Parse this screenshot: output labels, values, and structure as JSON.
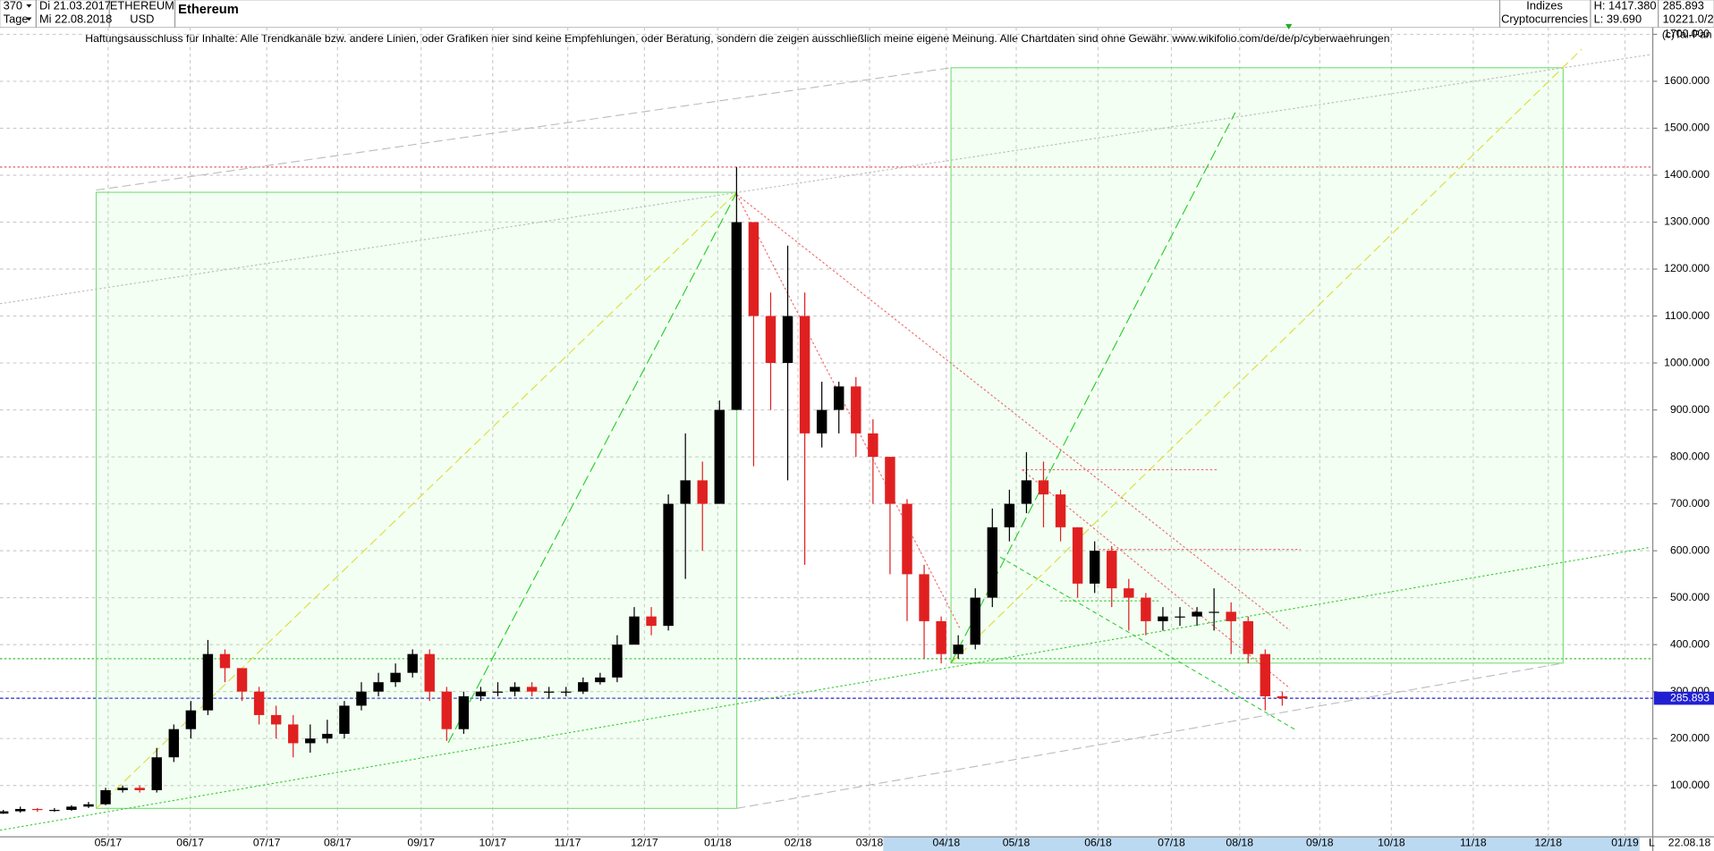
{
  "header": {
    "count": "370",
    "period": "Tage",
    "from": "Di 21.03.2017",
    "to": "Mi 22.08.2018",
    "symbol": "ETHEREUM",
    "currency": "USD",
    "group": "Indizes",
    "subgroup": "Cryptocurrencies",
    "high": "H: 1417.380",
    "low": "L: 39.690",
    "last": "285.893",
    "volume": "10221.0/2",
    "bottom_flag": "L",
    "bottom_date": "22.08.18"
  },
  "chart_data": {
    "type": "candlestick",
    "title": "Ethereum",
    "subtitle": "Haftungsausschluss für Inhalte: Alle Trendkanäle bzw. andere Linien, oder Grafiken hier sind keine Empfehlungen, oder Beratung, sondern die zeigen ausschließlich meine eigene Meinung. Alle Chartdaten sind ohne Gewähr.  www.wikifolio.com/de/de/p/cyberwaehrungen",
    "copyright": "(c)Tai-Pan",
    "up_color": "#000000",
    "down_color": "#e02020",
    "open": [
      40,
      45,
      50,
      48,
      48,
      55,
      60,
      90,
      95,
      90,
      160,
      220,
      260,
      380,
      350,
      300,
      250,
      230,
      190,
      200,
      210,
      270,
      300,
      320,
      340,
      380,
      300,
      220,
      290,
      300,
      300,
      310,
      300,
      300,
      300,
      320,
      330,
      400,
      460,
      440,
      700,
      750,
      700,
      900,
      1300,
      1100,
      1000,
      1100,
      850,
      900,
      950,
      850,
      800,
      700,
      550,
      450,
      380,
      400,
      500,
      650,
      700,
      750,
      720,
      650,
      530,
      600,
      520,
      500,
      450,
      460,
      460,
      470,
      470,
      450,
      380,
      290
    ],
    "high": [
      48,
      55,
      52,
      52,
      58,
      65,
      95,
      100,
      100,
      180,
      230,
      280,
      410,
      390,
      340,
      310,
      270,
      250,
      230,
      240,
      280,
      320,
      340,
      360,
      390,
      390,
      310,
      300,
      310,
      320,
      320,
      320,
      310,
      310,
      330,
      340,
      420,
      480,
      480,
      720,
      850,
      790,
      920,
      1417.38,
      1300,
      1150,
      1250,
      1150,
      960,
      960,
      970,
      880,
      800,
      710,
      570,
      460,
      420,
      520,
      690,
      730,
      810,
      790,
      730,
      650,
      620,
      610,
      540,
      510,
      480,
      480,
      480,
      520,
      490,
      460,
      390,
      300
    ],
    "low": [
      39.69,
      42,
      44,
      44,
      46,
      52,
      58,
      85,
      85,
      85,
      150,
      200,
      250,
      320,
      280,
      230,
      200,
      160,
      170,
      190,
      200,
      260,
      290,
      310,
      330,
      280,
      195,
      210,
      280,
      290,
      290,
      290,
      285,
      290,
      295,
      315,
      320,
      400,
      420,
      430,
      540,
      600,
      700,
      900,
      780,
      900,
      750,
      570,
      820,
      850,
      800,
      700,
      550,
      450,
      370,
      360,
      370,
      390,
      480,
      620,
      680,
      650,
      620,
      500,
      510,
      480,
      430,
      420,
      430,
      440,
      440,
      430,
      380,
      360,
      260,
      270
    ],
    "close": [
      45,
      50,
      48,
      48,
      55,
      60,
      90,
      95,
      90,
      160,
      220,
      260,
      380,
      350,
      300,
      250,
      230,
      190,
      200,
      210,
      270,
      300,
      320,
      340,
      380,
      300,
      220,
      290,
      300,
      300,
      310,
      300,
      300,
      300,
      320,
      330,
      400,
      460,
      440,
      700,
      750,
      700,
      900,
      1300,
      1100,
      1000,
      1100,
      850,
      900,
      950,
      850,
      800,
      700,
      550,
      450,
      380,
      400,
      500,
      650,
      700,
      750,
      720,
      650,
      530,
      600,
      520,
      500,
      450,
      460,
      460,
      470,
      470,
      450,
      380,
      290,
      285.893
    ],
    "xlim": [
      0,
      96.6
    ],
    "xticks": [
      {
        "value": 6.15,
        "label": "05/17"
      },
      {
        "value": 10.96,
        "label": "06/17"
      },
      {
        "value": 15.45,
        "label": "07/17"
      },
      {
        "value": 19.6,
        "label": "08/17"
      },
      {
        "value": 24.5,
        "label": "09/17"
      },
      {
        "value": 28.7,
        "label": "10/17"
      },
      {
        "value": 33.1,
        "label": "11/17"
      },
      {
        "value": 37.6,
        "label": "12/17"
      },
      {
        "value": 41.9,
        "label": "01/18"
      },
      {
        "value": 46.6,
        "label": "02/18"
      },
      {
        "value": 50.8,
        "label": "03/18"
      },
      {
        "value": 55.3,
        "label": "04/18"
      },
      {
        "value": 59.4,
        "label": "05/18"
      },
      {
        "value": 64.2,
        "label": "06/18"
      },
      {
        "value": 68.5,
        "label": "07/18"
      },
      {
        "value": 72.5,
        "label": "08/18"
      },
      {
        "value": 77.2,
        "label": "09/18"
      },
      {
        "value": 81.4,
        "label": "10/18"
      },
      {
        "value": 86.2,
        "label": "11/18"
      },
      {
        "value": 90.6,
        "label": "12/18"
      },
      {
        "value": 95.1,
        "label": "01/19"
      }
    ],
    "ylim": [
      0,
      1715
    ],
    "yticks": [
      {
        "value": 100,
        "label": "100.000"
      },
      {
        "value": 200,
        "label": "200.000"
      },
      {
        "value": 300,
        "label": "300.000"
      },
      {
        "value": 400,
        "label": "400.000"
      },
      {
        "value": 500,
        "label": "500.000"
      },
      {
        "value": 600,
        "label": "600.000"
      },
      {
        "value": 700,
        "label": "700.000"
      },
      {
        "value": 800,
        "label": "800.000"
      },
      {
        "value": 900,
        "label": "900.000"
      },
      {
        "value": 1000,
        "label": "1000.000"
      },
      {
        "value": 1100,
        "label": "1100.000"
      },
      {
        "value": 1200,
        "label": "1200.000"
      },
      {
        "value": 1300,
        "label": "1300.000"
      },
      {
        "value": 1400,
        "label": "1400.000"
      },
      {
        "value": 1500,
        "label": "1500.000"
      },
      {
        "value": 1600,
        "label": "1600.000"
      },
      {
        "value": 1700,
        "label": "1700.000"
      }
    ],
    "grid": true,
    "hlines": [
      {
        "value": 1417.38,
        "color": "#e06060"
      },
      {
        "value": 370,
        "color": "#30c030"
      }
    ],
    "last_price": {
      "value": 285.893,
      "label": "285.893",
      "color": "#2020d0"
    }
  }
}
